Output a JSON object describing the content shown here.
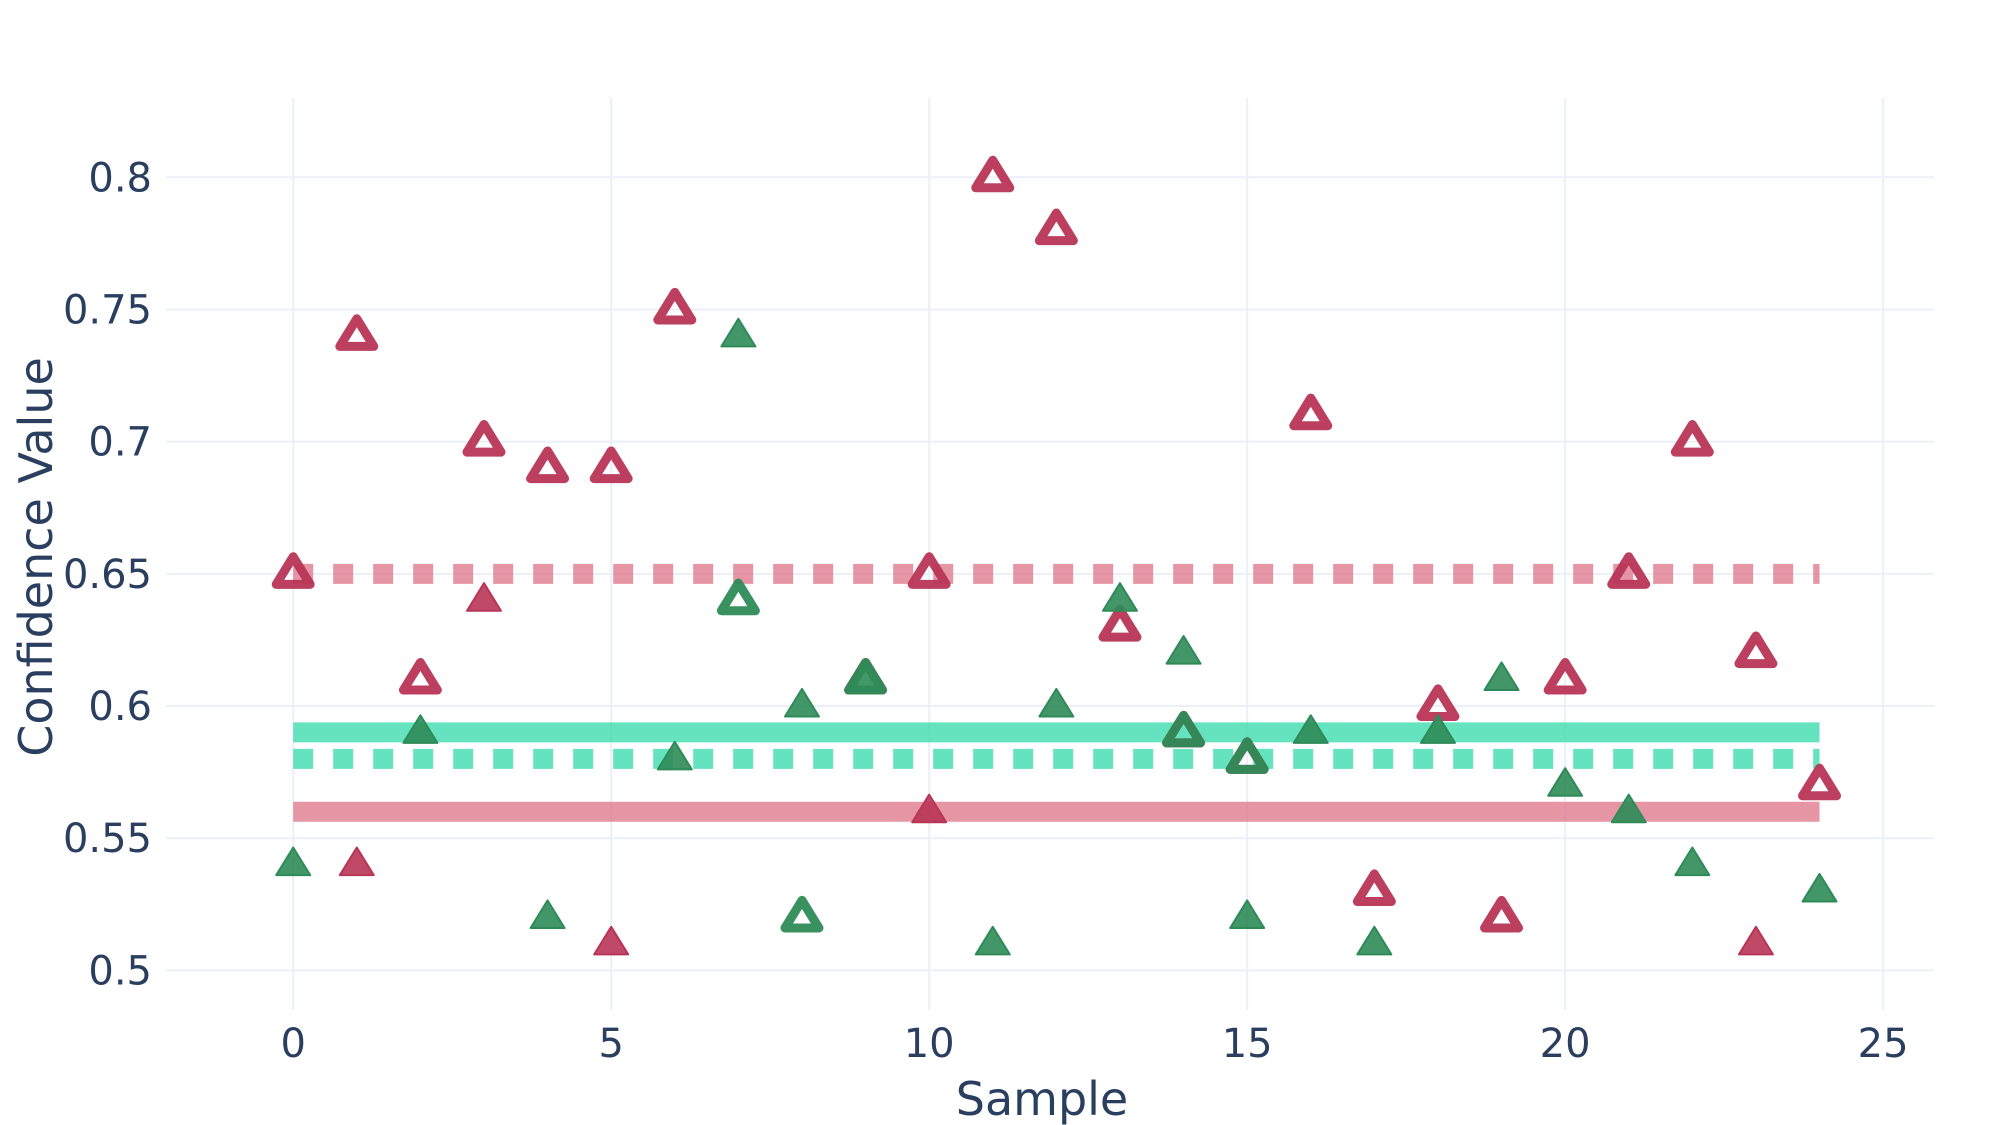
{
  "chart_data": {
    "type": "scatter",
    "xlabel": "Sample",
    "ylabel": "Confidence Value",
    "xlim": [
      -2,
      25.8
    ],
    "ylim": [
      0.485,
      0.83
    ],
    "x_ticks": [
      0,
      5,
      10,
      15,
      20,
      25
    ],
    "x_tick_labels": [
      "0",
      "5",
      "10",
      "15",
      "20",
      "25"
    ],
    "y_ticks": [
      0.5,
      0.55,
      0.6,
      0.65,
      0.7,
      0.75,
      0.8
    ],
    "y_tick_labels": [
      "0.5",
      "0.55",
      "0.6",
      "0.65",
      "0.7",
      "0.75",
      "0.8"
    ],
    "grid": true,
    "legend": false,
    "colors": {
      "red": "#b83556",
      "green": "#2e8b57",
      "green_teal": "#1aaf7a",
      "red_line": "#e07b8f",
      "green_line": "#3fdcae"
    },
    "series": [
      {
        "marker": "triangle-up-open",
        "color": "#b83556",
        "points": [
          [
            0,
            0.65
          ],
          [
            1,
            0.74
          ],
          [
            2,
            0.61
          ],
          [
            3,
            0.7
          ],
          [
            4,
            0.69
          ],
          [
            5,
            0.69
          ],
          [
            6,
            0.75
          ],
          [
            9,
            0.61
          ],
          [
            10,
            0.65
          ],
          [
            11,
            0.8
          ],
          [
            12,
            0.78
          ],
          [
            13,
            0.63
          ],
          [
            14,
            0.59
          ],
          [
            15,
            0.58
          ],
          [
            16,
            0.71
          ],
          [
            17,
            0.53
          ],
          [
            18,
            0.6
          ],
          [
            19,
            0.52
          ],
          [
            20,
            0.61
          ],
          [
            21,
            0.65
          ],
          [
            22,
            0.7
          ],
          [
            23,
            0.62
          ],
          [
            24,
            0.57
          ]
        ]
      },
      {
        "marker": "triangle-up",
        "color": "#b83556",
        "points": [
          [
            1,
            0.54
          ],
          [
            3,
            0.64
          ],
          [
            5,
            0.51
          ],
          [
            10,
            0.56
          ],
          [
            23,
            0.51
          ]
        ]
      },
      {
        "marker": "triangle-up",
        "color": "#2e8b57",
        "points": [
          [
            0,
            0.54
          ],
          [
            2,
            0.59
          ],
          [
            4,
            0.52
          ],
          [
            6,
            0.58
          ],
          [
            7,
            0.74
          ],
          [
            8,
            0.6
          ],
          [
            9,
            0.61
          ],
          [
            11,
            0.51
          ],
          [
            12,
            0.6
          ],
          [
            13,
            0.64
          ],
          [
            14,
            0.62
          ],
          [
            15,
            0.52
          ],
          [
            16,
            0.59
          ],
          [
            17,
            0.51
          ],
          [
            18,
            0.59
          ],
          [
            19,
            0.61
          ],
          [
            20,
            0.57
          ],
          [
            21,
            0.56
          ],
          [
            22,
            0.54
          ],
          [
            24,
            0.53
          ]
        ]
      },
      {
        "marker": "triangle-up-open",
        "color": "#2e8b57",
        "points": [
          [
            7,
            0.64
          ],
          [
            8,
            0.52
          ],
          [
            9,
            0.61
          ],
          [
            14,
            0.59
          ],
          [
            15,
            0.58
          ]
        ]
      }
    ],
    "reference_lines": [
      {
        "style": "dotted",
        "color": "#e07b8f",
        "y": 0.65,
        "x": [
          0,
          24
        ]
      },
      {
        "style": "solid",
        "color": "#e07b8f",
        "y": 0.56,
        "x": [
          0,
          24
        ]
      },
      {
        "style": "solid",
        "color": "#3fdcae",
        "y": 0.59,
        "x": [
          0,
          24
        ]
      },
      {
        "style": "dotted",
        "color": "#3fdcae",
        "y": 0.58,
        "x": [
          0,
          24
        ]
      }
    ]
  }
}
